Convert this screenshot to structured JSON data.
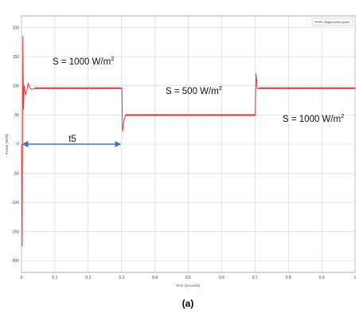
{
  "chart_data": {
    "type": "line",
    "xlabel": "Time (seconds)",
    "ylabel": "Power (W/W)",
    "xlim": [
      0,
      1
    ],
    "ylim": [
      -220,
      220
    ],
    "x_ticks": [
      0,
      0.1,
      0.2,
      0.3,
      0.4,
      0.5,
      0.6,
      0.7,
      0.8,
      0.9,
      1
    ],
    "x_tick_labels": [
      "0",
      "0.1",
      "0.2",
      "0.3",
      "0.4",
      "0.5",
      "0.6",
      "0.7",
      "0.8",
      "0.9",
      "1"
    ],
    "y_ticks": [
      -200,
      -150,
      -100,
      -50,
      0,
      50,
      100,
      150,
      200
    ],
    "y_tick_labels": [
      "-200",
      "-150",
      "-100",
      "-50",
      "0",
      "50",
      "100",
      "150",
      "200"
    ],
    "grid": true,
    "legend": {
      "placement": "top-right",
      "entries": [
        "Output active power"
      ]
    },
    "series": [
      {
        "name": "Output active power",
        "color": "#e83a3a",
        "x": [
          0,
          0.002,
          0.004,
          0.006,
          0.008,
          0.012,
          0.016,
          0.02,
          0.025,
          0.03,
          0.04,
          0.3,
          0.301,
          0.303,
          0.307,
          0.312,
          0.7,
          0.701,
          0.703,
          0.707,
          0.712,
          1
        ],
        "y": [
          0,
          -175,
          185,
          60,
          100,
          85,
          92,
          105,
          96,
          94,
          96,
          96,
          96,
          22,
          40,
          50,
          50,
          50,
          121,
          95,
          96,
          96
        ]
      }
    ],
    "annotations": [
      {
        "base": "S = 1000 W/m",
        "sup": "2"
      },
      {
        "base": "S = 500 W/m",
        "sup": "2"
      },
      {
        "base": "S = 1000 W/m",
        "sup": "2"
      },
      {
        "text": "t5",
        "from_x": 0,
        "to_x": 0.3,
        "y": 0
      }
    ],
    "caption": "(a)"
  }
}
